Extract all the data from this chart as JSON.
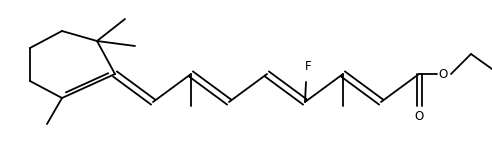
{
  "bg_color": "#ffffff",
  "line_color": "#000000",
  "line_width": 1.3,
  "font_size": 8.5,
  "figsize": [
    4.92,
    1.46
  ],
  "dpi": 100,
  "xlim": [
    0,
    492
  ],
  "ylim": [
    0,
    146
  ]
}
